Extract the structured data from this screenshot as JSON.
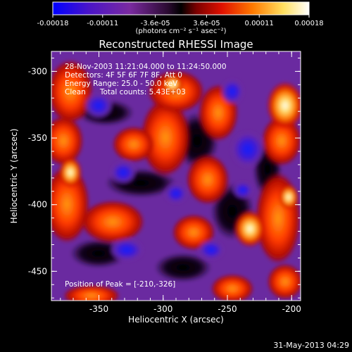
{
  "colorbar": {
    "tick_labels": [
      "-0.00018",
      "-0.00011",
      "-3.6e-05",
      "3.6e-05",
      "0.00011",
      "0.00018"
    ],
    "tick_values": [
      -0.00018,
      -0.00011,
      -3.6e-05,
      3.6e-05,
      0.00011,
      0.00018
    ],
    "range": [
      -0.00018,
      0.00018
    ],
    "units_label": "(photons cm⁻² s⁻¹ asec⁻²)",
    "colors": [
      "#0000ff",
      "#5a1eb0",
      "#8a2e9a",
      "#000000",
      "#8b0000",
      "#ff2200",
      "#ff8800",
      "#ffee66",
      "#ffffff"
    ]
  },
  "title": "Reconstructed RHESSI Image",
  "info": {
    "line1": "28-Nov-2003 11:21:04.000 to 11:24:50.000",
    "line2": "Detectors: 4F 5F 6F 7F 8F, Att 0",
    "line3": "Energy Range: 25.0 - 50.0 keV",
    "line4": "Clean      Total counts: 5.43E+03"
  },
  "peak_label": "Position of Peak = [-210,-326]",
  "axes": {
    "x_label": "Heliocentric X (arcsec)",
    "y_label": "Heliocentric Y (arcsec)",
    "x_ticks": [
      "-350",
      "-300",
      "-250",
      "-200"
    ],
    "x_tick_values": [
      -350,
      -300,
      -250,
      -200
    ],
    "x_range": [
      -387,
      -193
    ],
    "y_ticks": [
      "-300",
      "-350",
      "-400",
      "-450"
    ],
    "y_tick_values": [
      -300,
      -350,
      -400,
      -450
    ],
    "y_range": [
      -472,
      -285
    ]
  },
  "timestamp": "31-May-2013 04:29"
}
